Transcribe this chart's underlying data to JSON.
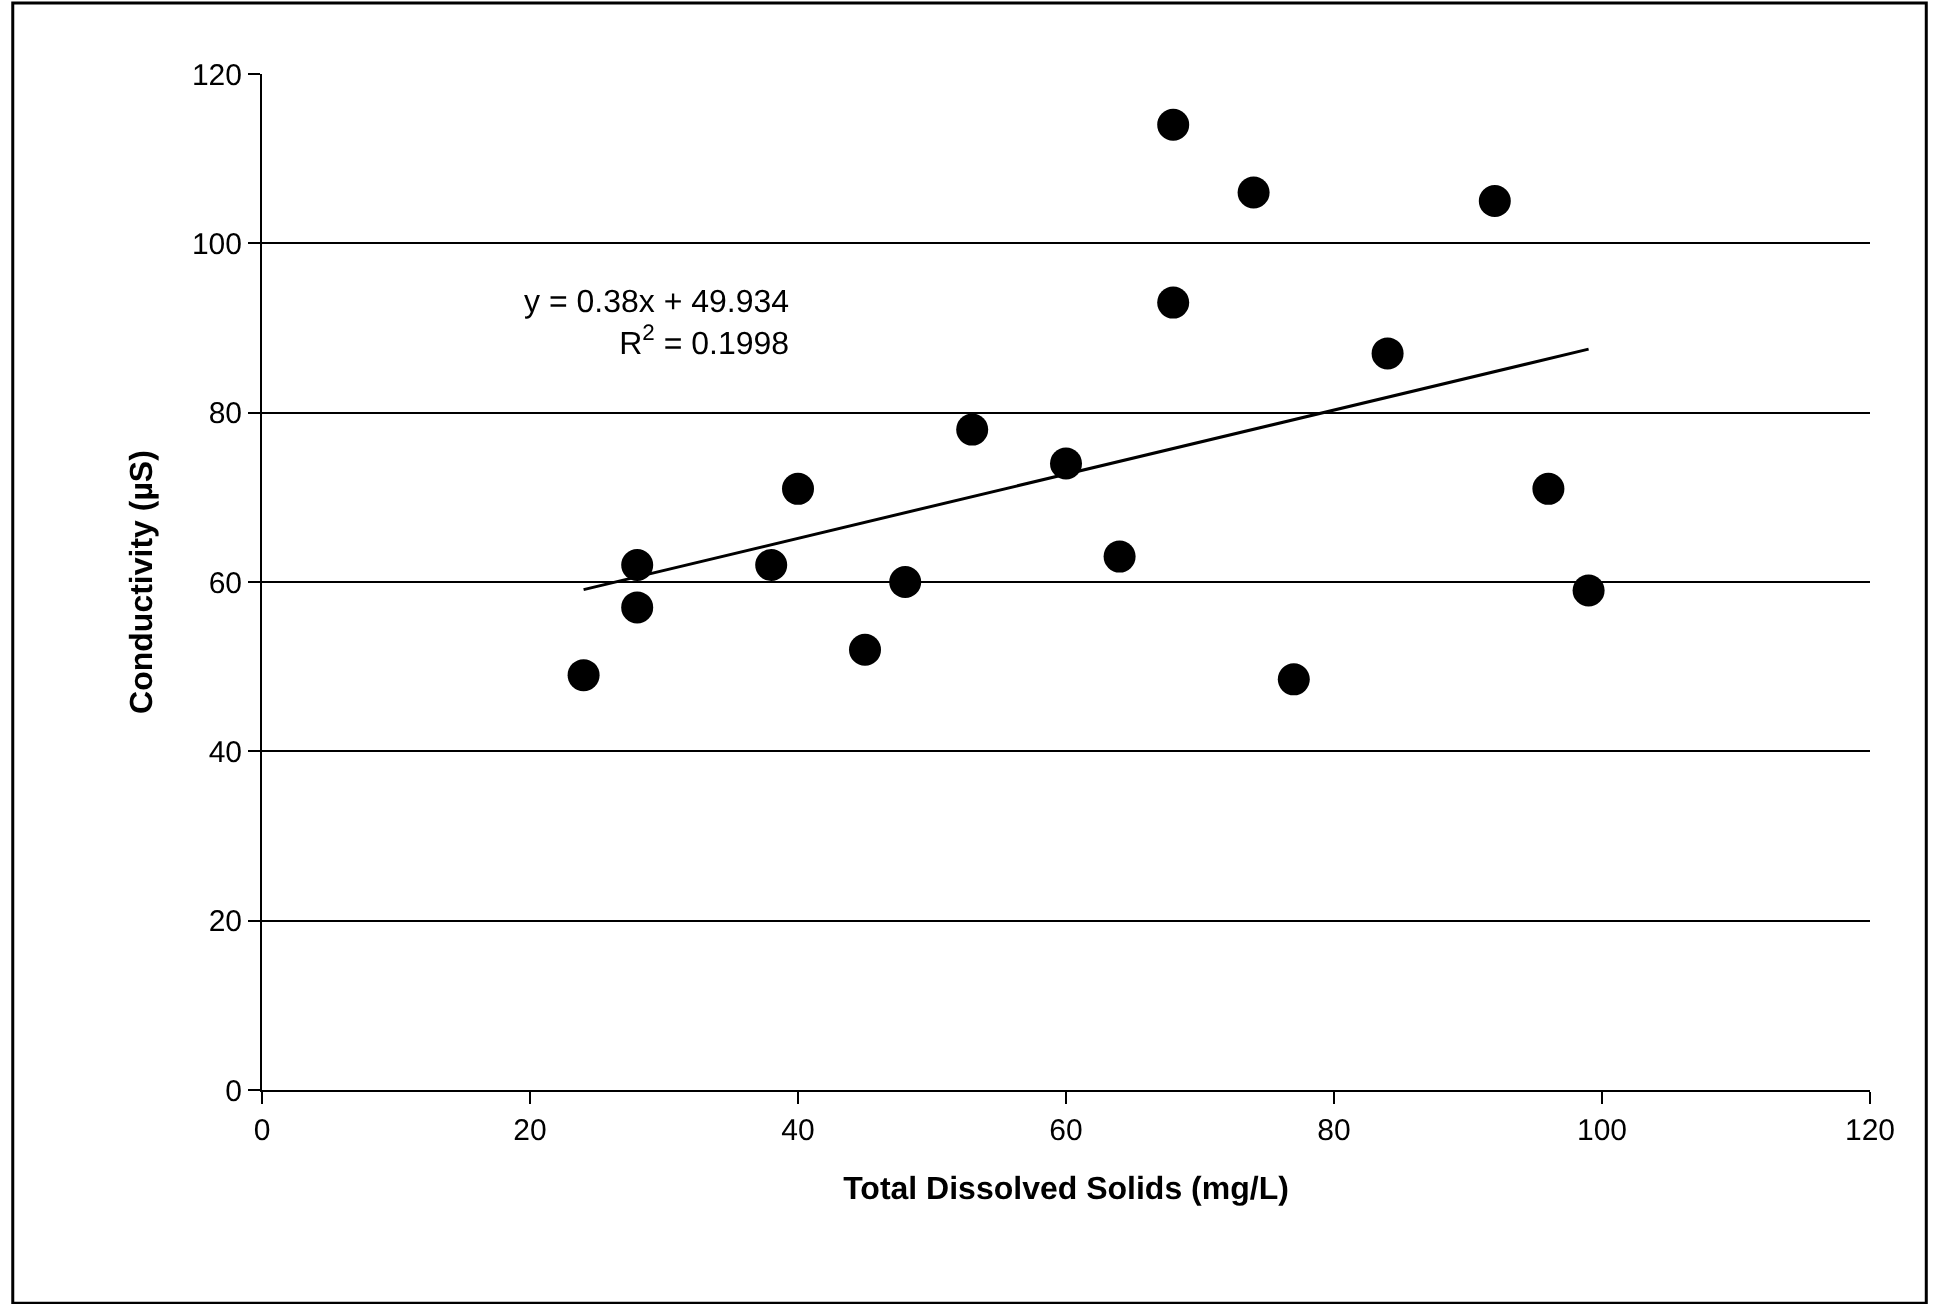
{
  "chart_data": {
    "type": "scatter",
    "xlabel": "Total Dissolved Solids (mg/L)",
    "ylabel": "Conductivity (µS)",
    "xlim": [
      0,
      120
    ],
    "xticks": [
      0,
      20,
      40,
      60,
      80,
      100,
      120
    ],
    "ylim": [
      0,
      120
    ],
    "yticks": [
      0,
      20,
      40,
      60,
      80,
      100,
      120
    ],
    "grid": "y",
    "marker": "circle",
    "series": [
      {
        "color": "#000000",
        "x": [
          24,
          28,
          28,
          38,
          40,
          45,
          48,
          53,
          60,
          64,
          68,
          68,
          74,
          77,
          84,
          92,
          96,
          99
        ],
        "values": [
          49,
          62,
          57,
          62,
          71,
          52,
          60,
          78,
          74,
          63,
          114,
          93,
          106,
          48.5,
          87,
          105,
          71,
          59
        ]
      },
      {
        "type": "line",
        "color": "#000000",
        "x": [
          24,
          99
        ],
        "values": [
          59.1,
          87.5
        ],
        "line_style": "solid",
        "marker": "none"
      }
    ],
    "annotations": [
      "y = 0.38x + 49.934\nR$^{2}$ = 0.1998"
    ]
  }
}
